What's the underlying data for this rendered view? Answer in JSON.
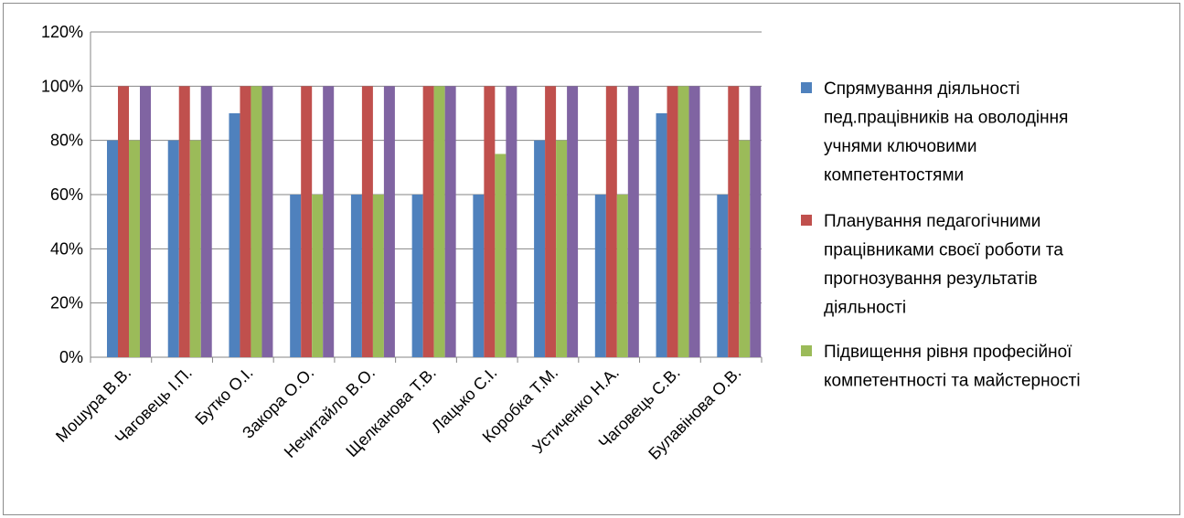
{
  "chart_data": {
    "type": "bar",
    "categories": [
      "Мошура В.В.",
      "Чаговець І.П.",
      "Бутко О.І.",
      "Закора О.О.",
      "Нечитайло В.О.",
      "Щелканова Т.В.",
      "Лацько С.І.",
      "Коробка Т.М.",
      "Устиченко Н.А.",
      "Чаговець С.В.",
      "Булавінова О.В."
    ],
    "y_ticks": [
      "0%",
      "20%",
      "40%",
      "60%",
      "80%",
      "100%",
      "120%"
    ],
    "ylim": [
      0,
      1.2
    ],
    "grid": true,
    "legend_position": "right",
    "series": [
      {
        "name_lines": [
          "Спрямування діяльності",
          "пед.працівників на оволодіння",
          "учнями ключовими",
          "компетентостями"
        ],
        "color": "#4f81bd",
        "values": [
          0.8,
          0.8,
          0.9,
          0.6,
          0.6,
          0.6,
          0.6,
          0.8,
          0.6,
          0.9,
          0.6
        ]
      },
      {
        "name_lines": [
          "Планування педагогічними",
          "працівниками своєї роботи та",
          "прогнозування результатів",
          "діяльності"
        ],
        "color": "#c0504d",
        "values": [
          1.0,
          1.0,
          1.0,
          1.0,
          1.0,
          1.0,
          1.0,
          1.0,
          1.0,
          1.0,
          1.0
        ]
      },
      {
        "name_lines": [
          "Підвищення рівня професійної",
          "компетентності та майстерності"
        ],
        "color": "#9bbb59",
        "values": [
          0.8,
          0.8,
          1.0,
          0.6,
          0.6,
          1.0,
          0.75,
          0.8,
          0.6,
          1.0,
          0.8
        ]
      },
      {
        "color": "#8064a2",
        "values": [
          1.0,
          1.0,
          1.0,
          1.0,
          1.0,
          1.0,
          1.0,
          1.0,
          1.0,
          1.0,
          1.0
        ]
      }
    ]
  }
}
